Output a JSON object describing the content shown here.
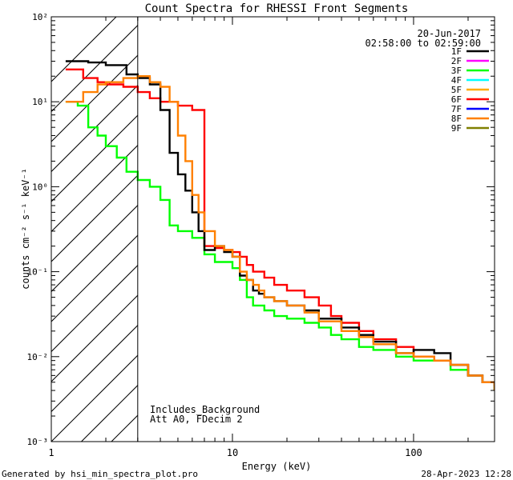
{
  "chart_data": {
    "type": "line",
    "title": "Count Spectra for RHESSI Front Segments",
    "xlabel": "Energy (keV)",
    "ylabel": "counts cm⁻² s⁻¹ keV⁻¹",
    "xscale": "log",
    "yscale": "log",
    "xlim": [
      1,
      280
    ],
    "ylim": [
      0.001,
      100
    ],
    "x_ticks": [
      "1",
      "10",
      "100"
    ],
    "y_ticks": [
      "10⁻³",
      "10⁻²",
      "10⁻¹",
      "10⁰",
      "10¹",
      "10²"
    ],
    "legend_position": "top-right",
    "date": "20-Jun-2017",
    "time_range": "02:58:00 to 02:59:00",
    "notes": [
      "Includes_Background",
      "Att A0, FDecim 2"
    ],
    "threshold_energy": 3,
    "series": [
      {
        "name": "1F",
        "color": "#000000",
        "x": [
          1.2,
          1.6,
          2.0,
          2.6,
          3.0,
          3.5,
          4.0,
          4.5,
          5.0,
          5.5,
          6.0,
          6.5,
          7,
          8,
          9,
          10,
          11,
          12,
          13,
          14,
          15,
          17,
          20,
          25,
          30,
          40,
          50,
          60,
          80,
          100,
          130,
          160,
          200,
          240,
          280
        ],
        "y": [
          30,
          29,
          27,
          21,
          19,
          16,
          8,
          2.5,
          1.4,
          0.9,
          0.5,
          0.3,
          0.18,
          0.2,
          0.17,
          0.15,
          0.09,
          0.08,
          0.06,
          0.055,
          0.05,
          0.045,
          0.04,
          0.035,
          0.028,
          0.022,
          0.018,
          0.015,
          0.011,
          0.012,
          0.011,
          0.008,
          0.006,
          0.005,
          0.004
        ]
      },
      {
        "name": "2F",
        "color": "#ff00ff",
        "x": [],
        "y": []
      },
      {
        "name": "3F",
        "color": "#00ff00",
        "x": [
          1.2,
          1.4,
          1.6,
          1.8,
          2.0,
          2.3,
          2.6,
          3.0,
          3.5,
          4.0,
          4.5,
          5.0,
          6.0,
          7.0,
          8.0,
          10,
          11,
          12,
          13,
          15,
          17,
          20,
          25,
          30,
          35,
          40,
          50,
          60,
          80,
          100,
          130,
          160,
          200,
          240,
          280
        ],
        "y": [
          10,
          9,
          5,
          4,
          3,
          2.2,
          1.5,
          1.2,
          1.0,
          0.7,
          0.35,
          0.3,
          0.25,
          0.16,
          0.13,
          0.11,
          0.08,
          0.05,
          0.04,
          0.035,
          0.03,
          0.028,
          0.025,
          0.022,
          0.018,
          0.016,
          0.013,
          0.012,
          0.01,
          0.009,
          0.009,
          0.007,
          0.006,
          0.005,
          0.004
        ]
      },
      {
        "name": "4F",
        "color": "#00ffff",
        "x": [],
        "y": []
      },
      {
        "name": "5F",
        "color": "#ffaa00",
        "x": [],
        "y": []
      },
      {
        "name": "6F",
        "color": "#ff0000",
        "x": [
          1.2,
          1.5,
          1.8,
          2.0,
          2.5,
          3.0,
          3.5,
          4.0,
          5.0,
          6.0,
          7.0,
          8.0,
          9.0,
          10,
          11,
          12,
          13,
          15,
          17,
          20,
          25,
          30,
          35,
          40,
          50,
          60,
          80,
          100,
          130,
          160,
          200,
          240,
          280
        ],
        "y": [
          24,
          19,
          17,
          16,
          15,
          13,
          11,
          10,
          9,
          8,
          0.2,
          0.19,
          0.18,
          0.17,
          0.15,
          0.12,
          0.1,
          0.085,
          0.07,
          0.06,
          0.05,
          0.04,
          0.03,
          0.025,
          0.02,
          0.016,
          0.013,
          0.01,
          0.009,
          0.008,
          0.006,
          0.005,
          0.0045
        ]
      },
      {
        "name": "7F",
        "color": "#0000ff",
        "x": [],
        "y": []
      },
      {
        "name": "8F",
        "color": "#ff8000",
        "x": [
          1.2,
          1.5,
          1.8,
          2.0,
          2.5,
          3.0,
          3.5,
          4.0,
          4.5,
          5.0,
          5.5,
          6.0,
          6.5,
          7,
          8,
          9,
          10,
          11,
          12,
          13,
          14,
          15,
          17,
          20,
          25,
          30,
          40,
          50,
          60,
          80,
          100,
          130,
          160,
          200,
          240,
          280
        ],
        "y": [
          10,
          13,
          16,
          17,
          19,
          20,
          17,
          15,
          10,
          4,
          2,
          0.8,
          0.5,
          0.3,
          0.2,
          0.18,
          0.15,
          0.1,
          0.08,
          0.07,
          0.06,
          0.05,
          0.045,
          0.04,
          0.033,
          0.026,
          0.02,
          0.017,
          0.014,
          0.011,
          0.01,
          0.009,
          0.008,
          0.006,
          0.005,
          0.004
        ]
      },
      {
        "name": "9F",
        "color": "#808000",
        "x": [],
        "y": []
      }
    ]
  },
  "footer": {
    "left": "Generated by hsi_min_spectra_plot.pro",
    "right": "28-Apr-2023 12:28"
  }
}
